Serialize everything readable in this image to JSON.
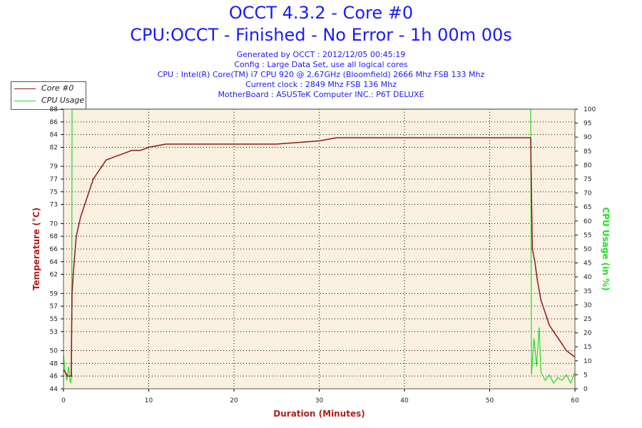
{
  "header": {
    "title": "OCCT 4.3.2 - Core #0",
    "subtitle": "CPU:OCCT - Finished - No Error - 1h 00m 00s",
    "generated": "Generated by OCCT : 2012/12/05 00:45:19",
    "config": "Config : Large Data Set, use all logical cores",
    "cpu": "CPU : Intel(R) Core(TM) i7 CPU 920 @ 2.67GHz (Bloomfield) 2666 Mhz FSB 133 Mhz",
    "clock": "Current clock : 2849 Mhz FSB 136 Mhz",
    "motherboard": "MotherBoard : ASUSTeK Computer INC.: P6T DELUXE"
  },
  "legend": {
    "items": [
      {
        "label": "Core #0",
        "color": "#8b1a1a"
      },
      {
        "label": "CPU Usage",
        "color": "#22dd22"
      }
    ]
  },
  "colors": {
    "plot_bg": "#faf0e0",
    "temperature": "#8b1a1a",
    "cpu_usage": "#22dd22",
    "axis_label": "#b02020",
    "right_axis_label": "#22dd22"
  },
  "chart_data": {
    "type": "line",
    "xlabel": "Duration (Minutes)",
    "ylabel": "Temperature (°C)",
    "y2label": "CPU Usage (in %)",
    "xlim": [
      0,
      60
    ],
    "ylim": [
      44,
      88
    ],
    "y2lim": [
      0,
      100
    ],
    "x_ticks": [
      0,
      10,
      20,
      30,
      40,
      50,
      60
    ],
    "y_ticks": [
      44,
      46,
      48,
      50,
      53,
      55,
      57,
      59,
      62,
      64,
      66,
      68,
      70,
      73,
      75,
      77,
      79,
      82,
      84,
      86,
      88
    ],
    "y2_ticks": [
      0,
      5,
      10,
      15,
      20,
      25,
      30,
      35,
      40,
      45,
      50,
      55,
      60,
      65,
      70,
      75,
      80,
      85,
      90,
      95,
      100
    ],
    "grid": true,
    "series": [
      {
        "name": "Core #0",
        "axis": "left",
        "x": [
          0,
          0.5,
          0.9,
          1.0,
          1.2,
          1.5,
          2.0,
          2.5,
          3.0,
          3.5,
          4.0,
          4.5,
          5.0,
          6.0,
          7.0,
          8.0,
          9.0,
          10.0,
          12.0,
          15.0,
          20.0,
          25.0,
          30.0,
          32.0,
          35.0,
          40.0,
          45.0,
          50.0,
          54.8,
          55.0,
          55.3,
          55.6,
          56.0,
          56.5,
          57.0,
          57.5,
          58.0,
          58.5,
          59.0,
          59.5,
          60.0
        ],
        "values": [
          47,
          46,
          46,
          59,
          63,
          68,
          71,
          73,
          75,
          77,
          78,
          79,
          80,
          80.5,
          81,
          81.5,
          81.5,
          82,
          82.5,
          82.5,
          82.5,
          82.5,
          83,
          83.5,
          83.5,
          83.5,
          83.5,
          83.5,
          83.5,
          66,
          64,
          61,
          58,
          56,
          54,
          53,
          52,
          51,
          50,
          49.5,
          49
        ]
      },
      {
        "name": "CPU Usage",
        "axis": "right",
        "x": [
          0,
          0.2,
          0.4,
          0.6,
          0.8,
          0.95,
          1.0,
          54.8,
          54.9,
          55.2,
          55.5,
          55.8,
          56.0,
          56.5,
          57.0,
          57.5,
          58.0,
          58.5,
          59.0,
          59.5,
          60.0
        ],
        "values": [
          12,
          6,
          3,
          8,
          2,
          4,
          100,
          100,
          5,
          18,
          8,
          22,
          6,
          3,
          5,
          2,
          4,
          3,
          5,
          2,
          6
        ]
      }
    ]
  }
}
